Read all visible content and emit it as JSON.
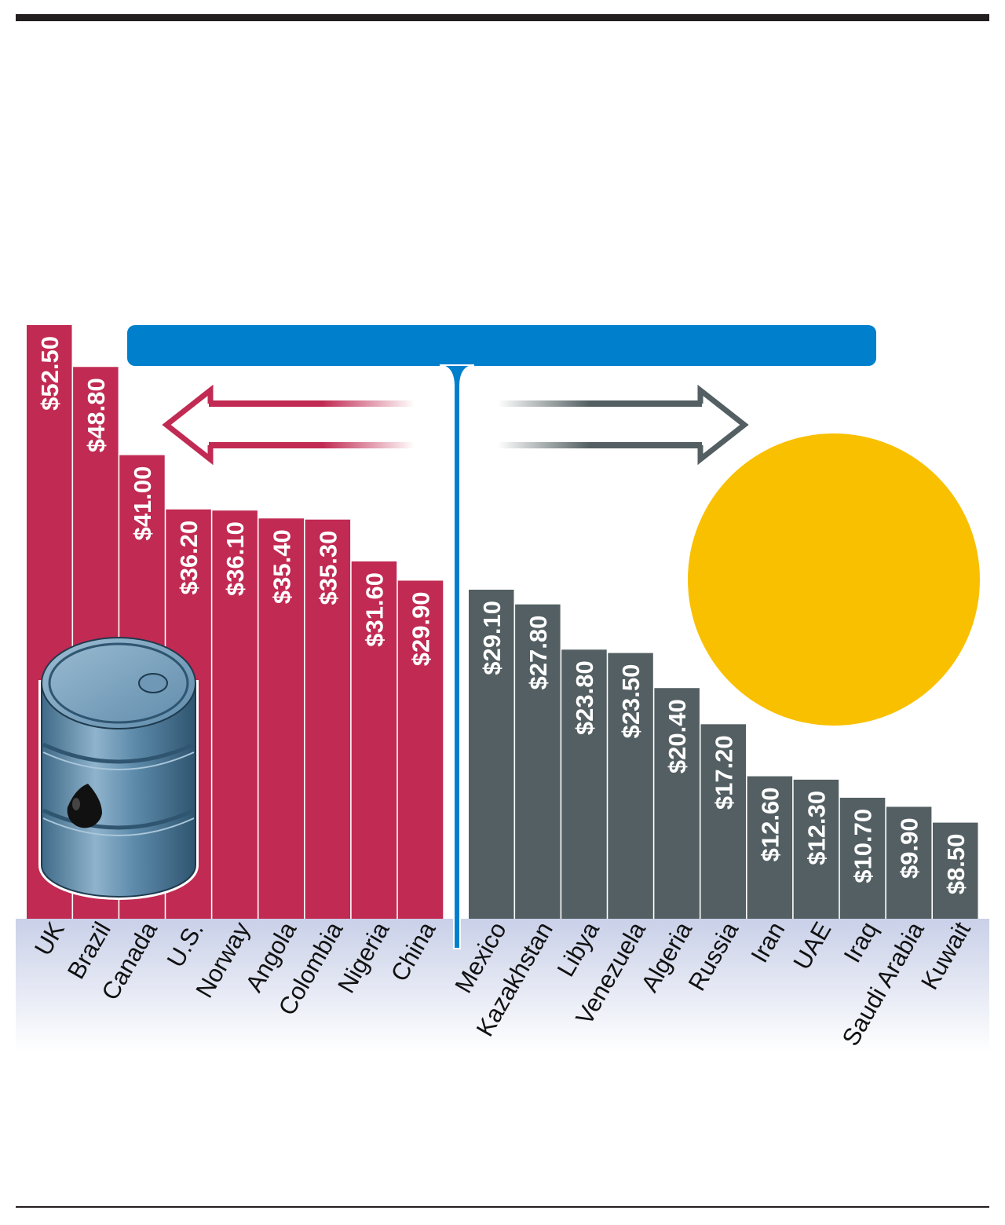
{
  "colors": {
    "left_bar": "#c12a52",
    "right_bar": "#535f62",
    "blue_bar": "#0080cc",
    "sun": "#f9c000",
    "rule": "#231f20",
    "barrel": "#5e8bab"
  },
  "icons": [
    "oil-barrel-icon",
    "oil-drop-icon",
    "sun-icon",
    "left-arrow-icon",
    "right-arrow-icon"
  ],
  "chart_data": {
    "type": "bar",
    "categories": [
      "UK",
      "Brazil",
      "Canada",
      "U.S.",
      "Norway",
      "Angola",
      "Colombia",
      "Nigeria",
      "China",
      "Mexico",
      "Kazakhstan",
      "Libya",
      "Venezuela",
      "Algeria",
      "Russia",
      "Iran",
      "UAE",
      "Iraq",
      "Saudi Arabia",
      "Kuwait"
    ],
    "values": [
      52.5,
      48.8,
      41.0,
      36.2,
      36.1,
      35.4,
      35.3,
      31.6,
      29.9,
      29.1,
      27.8,
      23.8,
      23.5,
      20.4,
      17.2,
      12.6,
      12.3,
      10.7,
      9.9,
      8.5
    ],
    "value_labels": [
      "$52.50",
      "$48.80",
      "$41.00",
      "$36.20",
      "$36.10",
      "$35.40",
      "$35.30",
      "$31.60",
      "$29.90",
      "$29.10",
      "$27.80",
      "$23.80",
      "$23.50",
      "$20.40",
      "$17.20",
      "$12.60",
      "$12.30",
      "$10.70",
      "$9.90",
      "$8.50"
    ],
    "groups": [
      {
        "categories": [
          "UK",
          "Brazil",
          "Canada",
          "U.S.",
          "Norway",
          "Angola",
          "Colombia",
          "Nigeria",
          "China"
        ],
        "color": "#c12a52"
      },
      {
        "categories": [
          "Mexico",
          "Kazakhstan",
          "Libya",
          "Venezuela",
          "Algeria",
          "Russia",
          "Iran",
          "UAE",
          "Iraq",
          "Saudi Arabia",
          "Kuwait"
        ],
        "color": "#535f62"
      }
    ],
    "ylim": [
      0,
      52.5
    ],
    "grid": false
  }
}
